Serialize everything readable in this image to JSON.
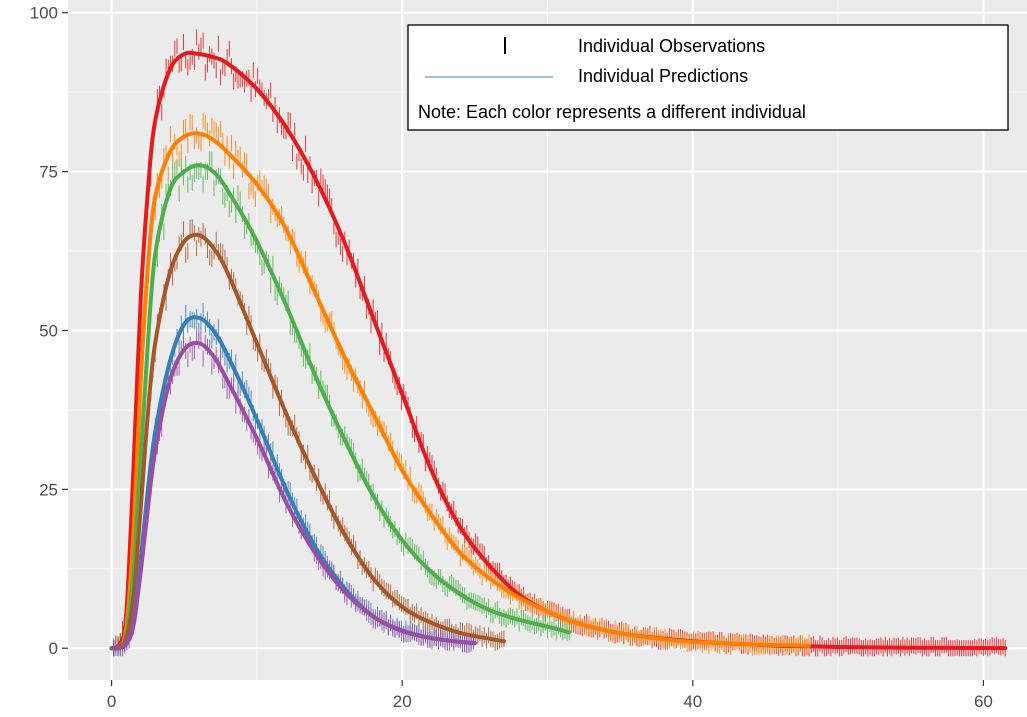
{
  "chart_data": {
    "type": "line",
    "title": "",
    "xlabel": "",
    "ylabel": "",
    "xlim": [
      -3,
      63
    ],
    "ylim": [
      -5,
      102
    ],
    "x_ticks": [
      0,
      20,
      40,
      60
    ],
    "x_tick_labels": [
      "0",
      "20",
      "40",
      "60"
    ],
    "y_ticks": [
      0,
      25,
      50,
      75,
      100
    ],
    "y_tick_labels": [
      "0",
      "25",
      "50",
      "75",
      "100"
    ],
    "grid": true,
    "legend": {
      "position": "top-right",
      "entries": [
        {
          "symbol": "|",
          "label": "Individual Observations"
        },
        {
          "symbol": "line",
          "label": "Individual Predictions"
        }
      ],
      "note": "Note: Each color represents a different individual"
    },
    "series": [
      {
        "color": "#e41a1c",
        "x": [
          0,
          0.5,
          1,
          1.5,
          2,
          2.5,
          3,
          4,
          5,
          6,
          7,
          8,
          10,
          12,
          14,
          16,
          18,
          20,
          22,
          24,
          26,
          28,
          30,
          32,
          34,
          36,
          38,
          40,
          42,
          44,
          46,
          48,
          50,
          52,
          54,
          56,
          58,
          60,
          61.5
        ],
        "y": [
          0,
          0.5,
          5,
          28,
          55,
          72,
          83,
          91,
          93.5,
          93.5,
          93,
          92,
          88,
          82,
          74,
          64,
          52,
          40,
          28,
          19,
          13,
          8.5,
          5.8,
          4,
          2.8,
          2,
          1.5,
          1.1,
          0.8,
          0.6,
          0.4,
          0.3,
          0.2,
          0.15,
          0.1,
          0.08,
          0.05,
          0.03,
          0.02
        ],
        "obs_until": 61.5
      },
      {
        "color": "#ff7f00",
        "x": [
          0,
          0.5,
          1,
          1.5,
          2,
          2.5,
          3,
          4,
          5,
          6,
          7,
          8,
          10,
          12,
          14,
          16,
          18,
          20,
          22,
          24,
          26,
          28,
          30,
          32,
          34,
          36,
          38,
          40,
          42,
          44,
          46,
          48
        ],
        "y": [
          0,
          0.3,
          3,
          18,
          42,
          60,
          71,
          78,
          80.5,
          81,
          80,
          78,
          73,
          66,
          56,
          46,
          37,
          28,
          21,
          15,
          11,
          8,
          5.8,
          4,
          2.8,
          2,
          1.4,
          1,
          0.8,
          0.6,
          0.5,
          0.4
        ],
        "obs_until": 48
      },
      {
        "color": "#4daf4a",
        "x": [
          0,
          0.5,
          1,
          1.5,
          2,
          2.5,
          3,
          4,
          5,
          6,
          7,
          8,
          10,
          12,
          14,
          16,
          18,
          20,
          22,
          24,
          26,
          28,
          30,
          31.5
        ],
        "y": [
          0,
          0.3,
          2,
          12,
          30,
          48,
          62,
          72,
          75,
          76,
          75,
          72,
          64,
          54,
          43,
          33,
          24,
          17,
          12,
          8.5,
          6,
          4.5,
          3.4,
          2.5
        ],
        "obs_until": 31.5
      },
      {
        "color": "#a65628",
        "x": [
          0,
          0.5,
          1,
          1.5,
          2,
          2.5,
          3,
          4,
          5,
          6,
          7,
          8,
          10,
          12,
          14,
          16,
          18,
          20,
          22,
          24,
          26,
          27
        ],
        "y": [
          0,
          0.3,
          1.5,
          8,
          22,
          37,
          48,
          59,
          64,
          65,
          63,
          59,
          48,
          37,
          27,
          18,
          11,
          6.5,
          4,
          2.4,
          1.5,
          1.1
        ],
        "obs_until": 27
      },
      {
        "color": "#377eb8",
        "x": [
          0,
          0.5,
          1,
          1.5,
          2,
          2.5,
          3,
          4,
          5,
          6,
          7,
          8,
          10,
          12,
          14,
          16,
          18,
          20,
          22,
          24,
          25
        ],
        "y": [
          0,
          0,
          0.8,
          4,
          14,
          25,
          34,
          45,
          51,
          52,
          50,
          46,
          36,
          25,
          16,
          9.5,
          5,
          2.8,
          1.6,
          1,
          0.8
        ],
        "obs_until": 25
      },
      {
        "color": "#984ea3",
        "x": [
          0,
          0.5,
          1,
          1.5,
          2,
          2.5,
          3,
          4,
          5,
          6,
          7,
          8,
          10,
          12,
          14,
          16,
          18,
          20,
          22,
          24,
          25
        ],
        "y": [
          0,
          0,
          0.6,
          3.5,
          12,
          22,
          31,
          42,
          47,
          48,
          46,
          42,
          33,
          23,
          15,
          9,
          5,
          2.7,
          1.6,
          1,
          0.8
        ],
        "obs_until": 25
      }
    ]
  }
}
